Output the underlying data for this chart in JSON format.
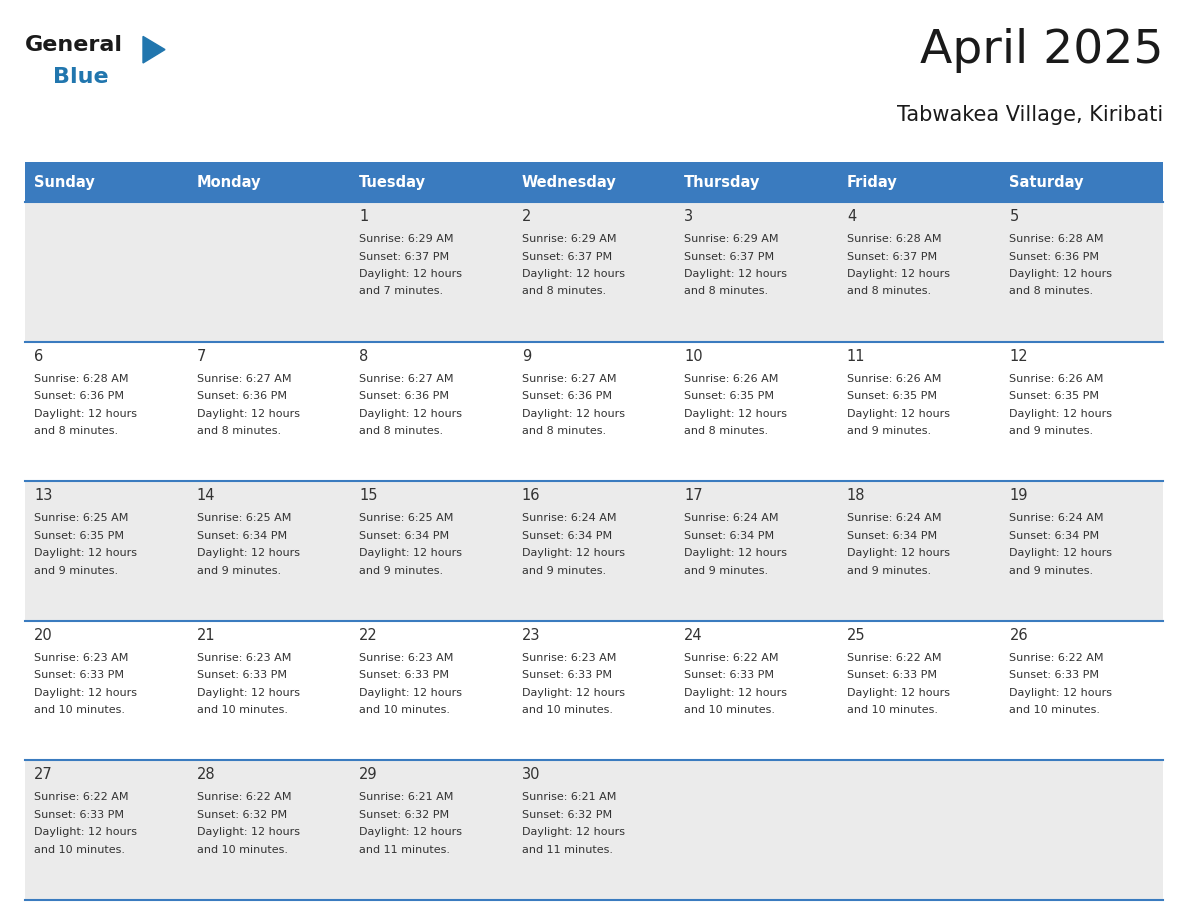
{
  "title": "April 2025",
  "subtitle": "Tabwakea Village, Kiribati",
  "header_color": "#3a7bbf",
  "header_text_color": "#ffffff",
  "days_of_week": [
    "Sunday",
    "Monday",
    "Tuesday",
    "Wednesday",
    "Thursday",
    "Friday",
    "Saturday"
  ],
  "weeks": [
    [
      {
        "day": "",
        "sunrise": "",
        "sunset": "",
        "daylight": ""
      },
      {
        "day": "",
        "sunrise": "",
        "sunset": "",
        "daylight": ""
      },
      {
        "day": "1",
        "sunrise": "Sunrise: 6:29 AM",
        "sunset": "Sunset: 6:37 PM",
        "daylight": "Daylight: 12 hours\nand 7 minutes."
      },
      {
        "day": "2",
        "sunrise": "Sunrise: 6:29 AM",
        "sunset": "Sunset: 6:37 PM",
        "daylight": "Daylight: 12 hours\nand 8 minutes."
      },
      {
        "day": "3",
        "sunrise": "Sunrise: 6:29 AM",
        "sunset": "Sunset: 6:37 PM",
        "daylight": "Daylight: 12 hours\nand 8 minutes."
      },
      {
        "day": "4",
        "sunrise": "Sunrise: 6:28 AM",
        "sunset": "Sunset: 6:37 PM",
        "daylight": "Daylight: 12 hours\nand 8 minutes."
      },
      {
        "day": "5",
        "sunrise": "Sunrise: 6:28 AM",
        "sunset": "Sunset: 6:36 PM",
        "daylight": "Daylight: 12 hours\nand 8 minutes."
      }
    ],
    [
      {
        "day": "6",
        "sunrise": "Sunrise: 6:28 AM",
        "sunset": "Sunset: 6:36 PM",
        "daylight": "Daylight: 12 hours\nand 8 minutes."
      },
      {
        "day": "7",
        "sunrise": "Sunrise: 6:27 AM",
        "sunset": "Sunset: 6:36 PM",
        "daylight": "Daylight: 12 hours\nand 8 minutes."
      },
      {
        "day": "8",
        "sunrise": "Sunrise: 6:27 AM",
        "sunset": "Sunset: 6:36 PM",
        "daylight": "Daylight: 12 hours\nand 8 minutes."
      },
      {
        "day": "9",
        "sunrise": "Sunrise: 6:27 AM",
        "sunset": "Sunset: 6:36 PM",
        "daylight": "Daylight: 12 hours\nand 8 minutes."
      },
      {
        "day": "10",
        "sunrise": "Sunrise: 6:26 AM",
        "sunset": "Sunset: 6:35 PM",
        "daylight": "Daylight: 12 hours\nand 8 minutes."
      },
      {
        "day": "11",
        "sunrise": "Sunrise: 6:26 AM",
        "sunset": "Sunset: 6:35 PM",
        "daylight": "Daylight: 12 hours\nand 9 minutes."
      },
      {
        "day": "12",
        "sunrise": "Sunrise: 6:26 AM",
        "sunset": "Sunset: 6:35 PM",
        "daylight": "Daylight: 12 hours\nand 9 minutes."
      }
    ],
    [
      {
        "day": "13",
        "sunrise": "Sunrise: 6:25 AM",
        "sunset": "Sunset: 6:35 PM",
        "daylight": "Daylight: 12 hours\nand 9 minutes."
      },
      {
        "day": "14",
        "sunrise": "Sunrise: 6:25 AM",
        "sunset": "Sunset: 6:34 PM",
        "daylight": "Daylight: 12 hours\nand 9 minutes."
      },
      {
        "day": "15",
        "sunrise": "Sunrise: 6:25 AM",
        "sunset": "Sunset: 6:34 PM",
        "daylight": "Daylight: 12 hours\nand 9 minutes."
      },
      {
        "day": "16",
        "sunrise": "Sunrise: 6:24 AM",
        "sunset": "Sunset: 6:34 PM",
        "daylight": "Daylight: 12 hours\nand 9 minutes."
      },
      {
        "day": "17",
        "sunrise": "Sunrise: 6:24 AM",
        "sunset": "Sunset: 6:34 PM",
        "daylight": "Daylight: 12 hours\nand 9 minutes."
      },
      {
        "day": "18",
        "sunrise": "Sunrise: 6:24 AM",
        "sunset": "Sunset: 6:34 PM",
        "daylight": "Daylight: 12 hours\nand 9 minutes."
      },
      {
        "day": "19",
        "sunrise": "Sunrise: 6:24 AM",
        "sunset": "Sunset: 6:34 PM",
        "daylight": "Daylight: 12 hours\nand 9 minutes."
      }
    ],
    [
      {
        "day": "20",
        "sunrise": "Sunrise: 6:23 AM",
        "sunset": "Sunset: 6:33 PM",
        "daylight": "Daylight: 12 hours\nand 10 minutes."
      },
      {
        "day": "21",
        "sunrise": "Sunrise: 6:23 AM",
        "sunset": "Sunset: 6:33 PM",
        "daylight": "Daylight: 12 hours\nand 10 minutes."
      },
      {
        "day": "22",
        "sunrise": "Sunrise: 6:23 AM",
        "sunset": "Sunset: 6:33 PM",
        "daylight": "Daylight: 12 hours\nand 10 minutes."
      },
      {
        "day": "23",
        "sunrise": "Sunrise: 6:23 AM",
        "sunset": "Sunset: 6:33 PM",
        "daylight": "Daylight: 12 hours\nand 10 minutes."
      },
      {
        "day": "24",
        "sunrise": "Sunrise: 6:22 AM",
        "sunset": "Sunset: 6:33 PM",
        "daylight": "Daylight: 12 hours\nand 10 minutes."
      },
      {
        "day": "25",
        "sunrise": "Sunrise: 6:22 AM",
        "sunset": "Sunset: 6:33 PM",
        "daylight": "Daylight: 12 hours\nand 10 minutes."
      },
      {
        "day": "26",
        "sunrise": "Sunrise: 6:22 AM",
        "sunset": "Sunset: 6:33 PM",
        "daylight": "Daylight: 12 hours\nand 10 minutes."
      }
    ],
    [
      {
        "day": "27",
        "sunrise": "Sunrise: 6:22 AM",
        "sunset": "Sunset: 6:33 PM",
        "daylight": "Daylight: 12 hours\nand 10 minutes."
      },
      {
        "day": "28",
        "sunrise": "Sunrise: 6:22 AM",
        "sunset": "Sunset: 6:32 PM",
        "daylight": "Daylight: 12 hours\nand 10 minutes."
      },
      {
        "day": "29",
        "sunrise": "Sunrise: 6:21 AM",
        "sunset": "Sunset: 6:32 PM",
        "daylight": "Daylight: 12 hours\nand 11 minutes."
      },
      {
        "day": "30",
        "sunrise": "Sunrise: 6:21 AM",
        "sunset": "Sunset: 6:32 PM",
        "daylight": "Daylight: 12 hours\nand 11 minutes."
      },
      {
        "day": "",
        "sunrise": "",
        "sunset": "",
        "daylight": ""
      },
      {
        "day": "",
        "sunrise": "",
        "sunset": "",
        "daylight": ""
      },
      {
        "day": "",
        "sunrise": "",
        "sunset": "",
        "daylight": ""
      }
    ]
  ],
  "row_colors": [
    "#ebebeb",
    "#ffffff",
    "#ebebeb",
    "#ffffff",
    "#ebebeb"
  ],
  "divider_color": "#3a7bbf",
  "text_color": "#333333",
  "day_number_color": "#333333",
  "logo_color_general": "#1a1a1a",
  "logo_color_blue": "#2176ae"
}
